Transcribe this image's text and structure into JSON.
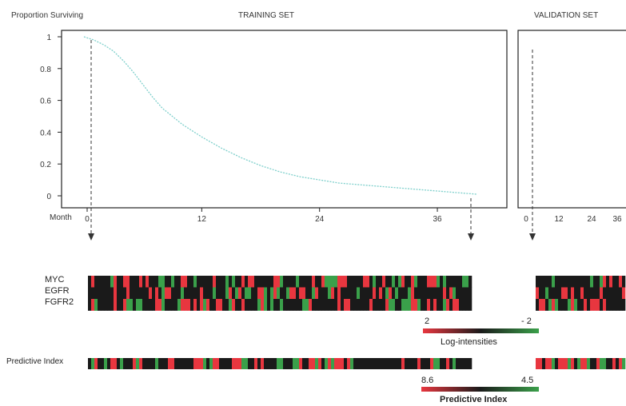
{
  "chart_data": [
    {
      "type": "line",
      "title": "TRAINING SET",
      "ylabel": "Proportion Surviving",
      "xlabel": "Month",
      "xlim": [
        0,
        43
      ],
      "ylim": [
        0,
        1
      ],
      "xticks": [
        "0",
        "12",
        "24",
        "36"
      ],
      "yticks": [
        "1",
        "0.8",
        "0.6",
        "0.4",
        "0.2",
        "0"
      ],
      "series": [
        {
          "x": [
            0,
            1,
            2,
            3,
            4,
            5,
            6,
            7,
            8,
            10,
            12,
            14,
            16,
            18,
            20,
            22,
            24,
            26,
            28,
            30,
            32,
            34,
            36,
            38,
            40
          ],
          "y": [
            1.0,
            0.98,
            0.95,
            0.91,
            0.85,
            0.78,
            0.7,
            0.62,
            0.55,
            0.45,
            0.37,
            0.3,
            0.24,
            0.19,
            0.15,
            0.12,
            0.1,
            0.08,
            0.07,
            0.06,
            0.05,
            0.04,
            0.03,
            0.02,
            0.01
          ]
        }
      ],
      "color": "#7fd0cc"
    },
    {
      "type": "line",
      "title": "VALIDATION SET",
      "xticks": [
        "0",
        "12",
        "24",
        "36"
      ],
      "xlim": [
        0,
        43
      ],
      "ylim": [
        0,
        1
      ]
    }
  ],
  "heatmap": {
    "gene_labels": [
      "MYC",
      "EGFR",
      "FGFR2"
    ],
    "pi_label": "Predictive Index",
    "colors": {
      "red": "#e8363f",
      "green": "#3aa04a",
      "black": "#1a1a1a"
    }
  },
  "legend_log": {
    "high": "2",
    "low": "- 2",
    "title": "Log-intensities"
  },
  "legend_pi": {
    "high": "8.6",
    "low": "4.5",
    "title": "Predictive Index"
  }
}
